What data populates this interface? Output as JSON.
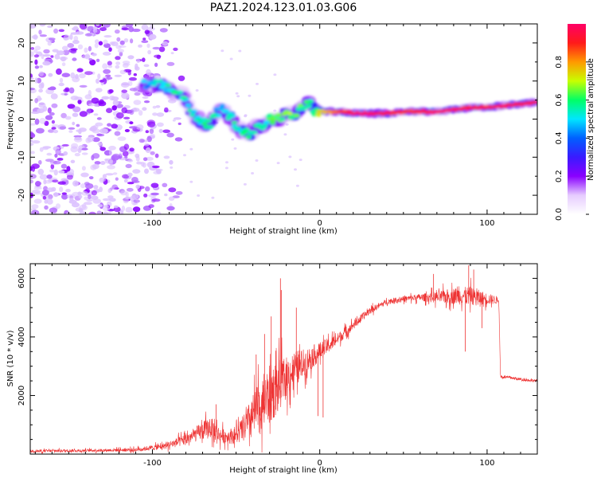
{
  "figure": {
    "title": "PAZ1.2024.123.01.03.G06"
  },
  "colors": {
    "snr_line": "#ee3333",
    "noise_purple": "#8800ff",
    "rainbow": [
      "#ffffff",
      "#e6ccff",
      "#8a00ff",
      "#3a1aff",
      "#0060ff",
      "#00e6ff",
      "#00ff66",
      "#c8ff00",
      "#ff9900",
      "#ff1a1a",
      "#ff0066"
    ]
  },
  "chart_data": [
    {
      "type": "heatmap",
      "name": "spectrogram",
      "xlabel": "Height of straight line (km)",
      "ylabel": "Frequency (Hz)",
      "xlim": [
        -173,
        130
      ],
      "ylim": [
        -25,
        25
      ],
      "xticks": [
        -100,
        0,
        100
      ],
      "xtick_labels": [
        "-100",
        "0",
        "100"
      ],
      "yticks": [
        20,
        10,
        0,
        -10,
        -20
      ],
      "ytick_labels": [
        "20",
        "10",
        "0",
        "-10",
        "-20"
      ],
      "colorbar": {
        "label": "Normalized spectral amplitude",
        "range": [
          0,
          1
        ],
        "ticks": [
          0.0,
          0.2,
          0.4,
          0.6,
          0.8
        ],
        "tick_labels": [
          "0.0",
          "0.2",
          "0.4",
          "0.6",
          "0.8"
        ]
      },
      "noise_region": {
        "x_range": [
          -173,
          -90
        ],
        "y_range": [
          -25,
          25
        ]
      },
      "ridge": {
        "x": [
          -105,
          -95,
          -88,
          -82,
          -78,
          -74,
          -70,
          -66,
          -62,
          -58,
          -54,
          -50,
          -46,
          -42,
          -38,
          -34,
          -30,
          -26,
          -22,
          -18,
          -14,
          -10,
          -6,
          -3,
          0,
          5,
          10,
          20,
          30,
          40,
          50,
          60,
          70,
          80,
          90,
          100,
          110,
          120,
          130
        ],
        "y": [
          9,
          9,
          7.5,
          6.5,
          3,
          0.5,
          -1,
          -1.5,
          1.5,
          2.5,
          1,
          -1.5,
          -3,
          -4,
          -2,
          -2,
          0,
          0,
          1,
          1.5,
          1.5,
          3.5,
          4.5,
          2,
          2,
          2,
          2,
          1.5,
          1.5,
          1.5,
          2,
          2,
          2,
          2.5,
          3,
          3,
          3.5,
          4,
          4.5
        ],
        "amplitude": [
          0.45,
          0.5,
          0.55,
          0.55,
          0.5,
          0.5,
          0.55,
          0.55,
          0.5,
          0.5,
          0.5,
          0.55,
          0.55,
          0.55,
          0.6,
          0.5,
          0.6,
          0.6,
          0.6,
          0.65,
          0.6,
          0.6,
          0.55,
          0.6,
          0.7,
          0.75,
          0.8,
          0.95,
          0.95,
          0.9,
          0.85,
          0.9,
          0.95,
          0.95,
          0.9,
          0.9,
          0.95,
          0.9,
          0.9
        ]
      }
    },
    {
      "type": "line",
      "name": "snr",
      "xlabel": "Height of straight line (km)",
      "ylabel": "SNR (10 * v/v)",
      "xlim": [
        -173,
        130
      ],
      "ylim": [
        0,
        6500
      ],
      "xticks": [
        -100,
        0,
        100
      ],
      "xtick_labels": [
        "-100",
        "0",
        "100"
      ],
      "yticks": [
        2000,
        4000,
        6000
      ],
      "ytick_labels": [
        "2000",
        "4000",
        "6000"
      ],
      "series": [
        {
          "x": [
            -173,
            -150,
            -130,
            -110,
            -95,
            -85,
            -80,
            -75,
            -70,
            -65,
            -60,
            -55,
            -50,
            -45,
            -40,
            -35,
            -30,
            -25,
            -20,
            -15,
            -10,
            -5,
            0,
            10,
            20,
            30,
            40,
            50,
            60,
            70,
            80,
            90,
            100,
            107,
            108,
            115,
            120,
            130
          ],
          "y": [
            100,
            120,
            130,
            150,
            250,
            400,
            500,
            650,
            800,
            900,
            650,
            600,
            650,
            900,
            1300,
            1700,
            2000,
            2300,
            2600,
            2900,
            3100,
            3300,
            3500,
            3900,
            4400,
            4900,
            5200,
            5300,
            5350,
            5350,
            5400,
            5400,
            5300,
            5250,
            2650,
            2600,
            2550,
            2500
          ],
          "noise": [
            60,
            60,
            60,
            80,
            120,
            200,
            250,
            300,
            400,
            450,
            350,
            300,
            400,
            600,
            900,
            1200,
            1300,
            1100,
            900,
            800,
            600,
            500,
            400,
            250,
            200,
            150,
            120,
            120,
            150,
            250,
            350,
            400,
            250,
            150,
            80,
            60,
            60,
            60
          ],
          "spikes": [
            {
              "x": -62,
              "y": 1700
            },
            {
              "x": -38,
              "y": 3400
            },
            {
              "x": -33,
              "y": 4100
            },
            {
              "x": -29,
              "y": 4700
            },
            {
              "x": -23.5,
              "y": 6000
            },
            {
              "x": -23,
              "y": 5600
            },
            {
              "x": -14,
              "y": 5000
            },
            {
              "x": -1,
              "y": 1300
            },
            {
              "x": 2,
              "y": 1250
            },
            {
              "x": 68,
              "y": 6150
            },
            {
              "x": 87,
              "y": 3500
            },
            {
              "x": 89,
              "y": 6450
            },
            {
              "x": 92,
              "y": 6300
            },
            {
              "x": 97,
              "y": 4300
            }
          ]
        }
      ]
    }
  ]
}
